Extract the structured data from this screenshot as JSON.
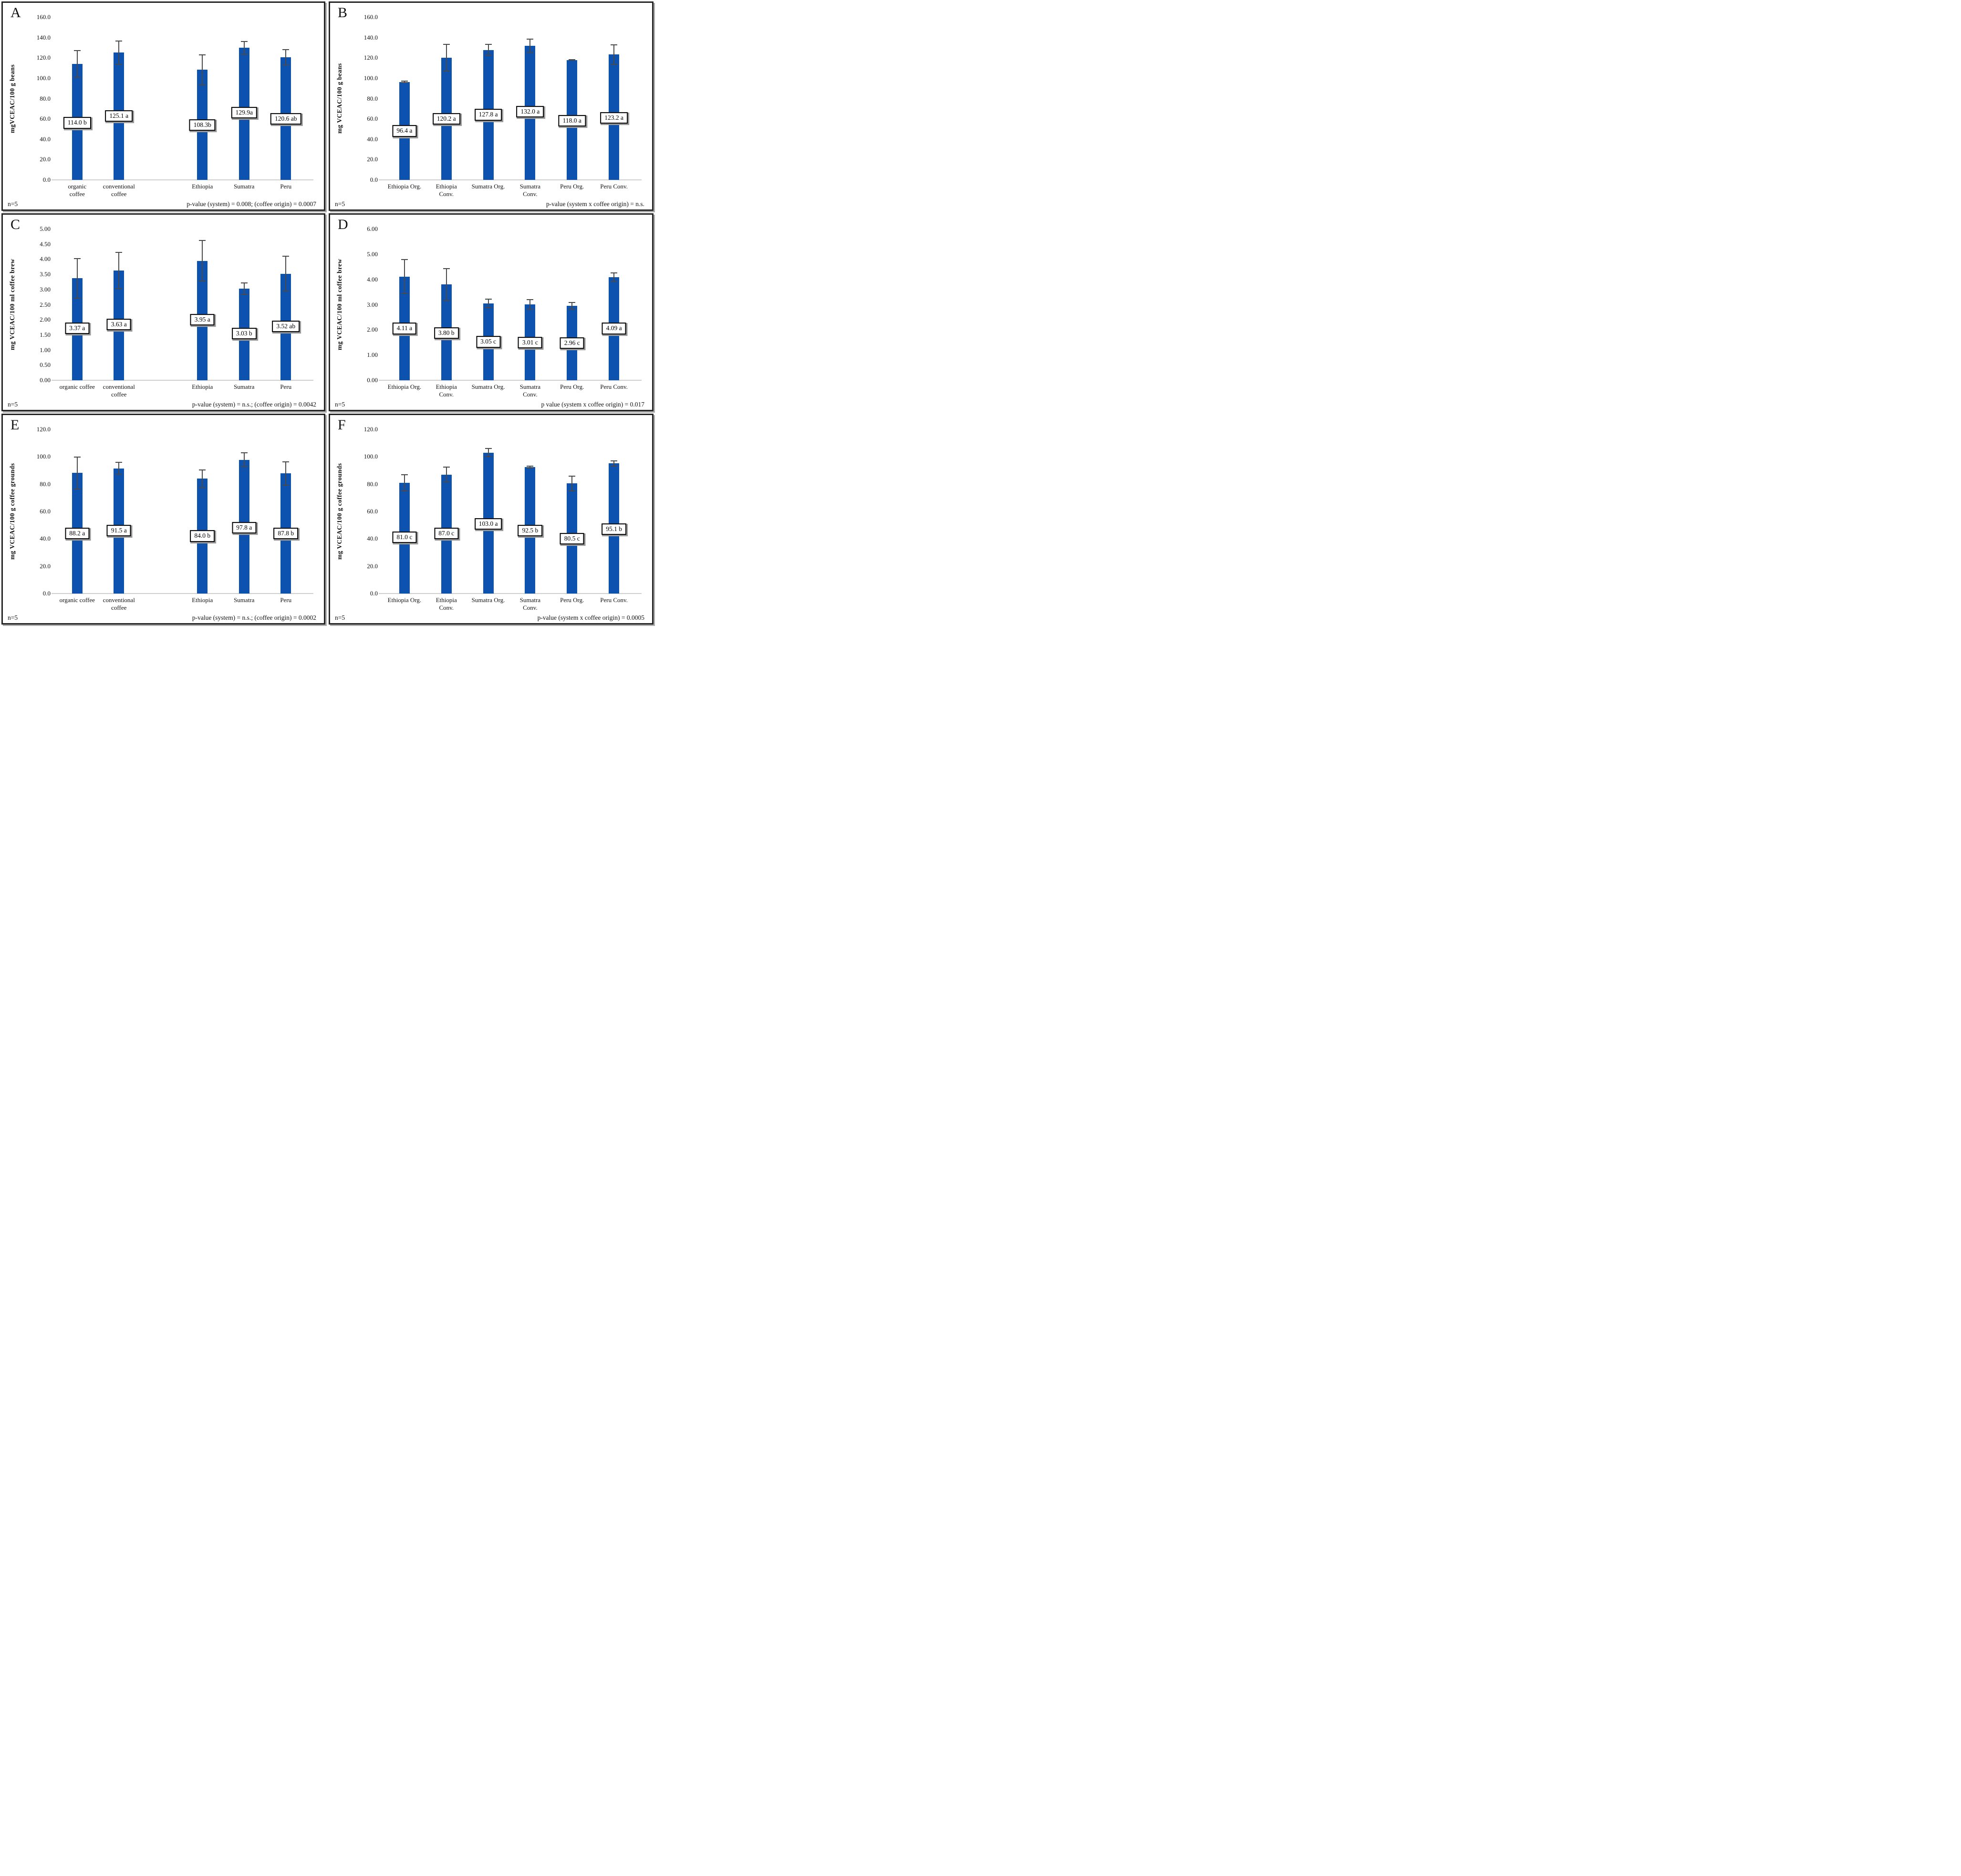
{
  "style": {
    "bar_color": "#0d52af",
    "error_bar_color": "#4a4a4a",
    "baseline_color": "#cfcfcf",
    "panel_border_color": "#262626",
    "label_box_border_color": "#000000",
    "label_box_shadow_color": "#999999"
  },
  "chart_data": [
    {
      "panel": "A",
      "letter": "A",
      "type": "bar",
      "ylabel": "mgVCEAC/100 g beans",
      "ylim": [
        0,
        160
      ],
      "ytick_labels": [
        "0.0",
        "20.0",
        "40.0",
        "60.0",
        "80.0",
        "100.0",
        "120.0",
        "140.0",
        "160.0"
      ],
      "categories": [
        "organic\ncoffee",
        "conventional\ncoffee",
        "Ethiopia",
        "Sumatra",
        "Peru"
      ],
      "values": [
        114.0,
        125.1,
        108.3,
        129.9,
        120.6
      ],
      "errors": [
        13.5,
        11.8,
        15.3,
        6.8,
        7.8
      ],
      "bar_labels": [
        "114.0 b",
        "125.1 a",
        "108.3b",
        "129.9a",
        "120.6 ab"
      ],
      "label_y": [
        56,
        63,
        54,
        66,
        60
      ],
      "slots": [
        0,
        1,
        3,
        4,
        5
      ],
      "n_label": "n=5",
      "p_label": "p-value (system) = 0.008; (coffee origin) = 0.0007",
      "legend": "none",
      "grid": "off"
    },
    {
      "panel": "B",
      "letter": "B",
      "type": "bar",
      "ylabel": "mg VCEAC/100 g beans",
      "ylim": [
        0,
        160
      ],
      "ytick_labels": [
        "0.0",
        "20.0",
        "40.0",
        "60.0",
        "80.0",
        "100.0",
        "120.0",
        "140.0",
        "160.0"
      ],
      "categories": [
        "Ethiopia Org.",
        "Ethiopia\nConv.",
        "Sumatra Org.",
        "Sumatra\nConv.",
        "Peru Org.",
        "Peru Conv."
      ],
      "values": [
        96.4,
        120.2,
        127.8,
        132.0,
        118.0,
        123.2
      ],
      "errors": [
        1.2,
        13.5,
        5.8,
        7.0,
        0.8,
        10.3
      ],
      "bar_labels": [
        "96.4 a",
        "120.2 a",
        "127.8 a",
        "132.0 a",
        "118.0 a",
        "123.2 a"
      ],
      "label_y": [
        48,
        60,
        64,
        67,
        58,
        61
      ],
      "slots": [
        0,
        1,
        2,
        3,
        4,
        5
      ],
      "n_label": "n=5",
      "p_label": "p-value (system x coffee origin) = n.s.",
      "legend": "none",
      "grid": "off"
    },
    {
      "panel": "C",
      "letter": "C",
      "type": "bar",
      "ylabel": "mg VCEAC/100 ml coffee brew",
      "ylim": [
        0,
        5
      ],
      "ytick_labels": [
        "0.00",
        "0.50",
        "1.00",
        "1.50",
        "2.00",
        "2.50",
        "3.00",
        "3.50",
        "4.00",
        "4.50",
        "5.00"
      ],
      "categories": [
        "organic coffee",
        "conventional\ncoffee",
        "Ethiopia",
        "Sumatra",
        "Peru"
      ],
      "values": [
        3.37,
        3.63,
        3.95,
        3.03,
        3.52
      ],
      "errors": [
        0.67,
        0.61,
        0.68,
        0.21,
        0.59
      ],
      "bar_labels": [
        "3.37 a",
        "3.63 a",
        "3.95 a",
        "3.03 b",
        "3.52 ab"
      ],
      "label_y": [
        1.72,
        1.85,
        2.0,
        1.55,
        1.78
      ],
      "slots": [
        0,
        1,
        3,
        4,
        5
      ],
      "n_label": "n=5",
      "p_label": "p-value (system) = n.s.; (coffee origin) = 0.0042",
      "legend": "none",
      "grid": "off"
    },
    {
      "panel": "D",
      "letter": "D",
      "type": "bar",
      "ylabel": "mg VCEAC/100 ml coffee brew",
      "ylim": [
        0,
        6
      ],
      "ytick_labels": [
        "0.00",
        "1.00",
        "2.00",
        "3.00",
        "4.00",
        "5.00",
        "6.00"
      ],
      "categories": [
        "Ethiopia Org.",
        "Ethiopia\nConv.",
        "Sumatra Org.",
        "Sumatra\nConv.",
        "Peru Org.",
        "Peru Conv."
      ],
      "values": [
        4.11,
        3.8,
        3.05,
        3.01,
        2.96,
        4.09
      ],
      "errors": [
        0.69,
        0.65,
        0.19,
        0.2,
        0.15,
        0.19
      ],
      "bar_labels": [
        "4.11 a",
        "3.80 b",
        "3.05 c",
        "3.01 c",
        "2.96 c",
        "4.09 a"
      ],
      "label_y": [
        2.05,
        1.87,
        1.52,
        1.5,
        1.47,
        2.05
      ],
      "slots": [
        0,
        1,
        2,
        3,
        4,
        5
      ],
      "n_label": "n=5",
      "p_label": "p value (system x coffee origin) = 0.017",
      "legend": "none",
      "grid": "off"
    },
    {
      "panel": "E",
      "letter": "E",
      "type": "bar",
      "ylabel": "mg VCEAC/100 g coffee grounds",
      "ylim": [
        0,
        120
      ],
      "ytick_labels": [
        "0.0",
        "20.0",
        "40.0",
        "60.0",
        "80.0",
        "100.0",
        "120.0"
      ],
      "categories": [
        "organic coffee",
        "conventional\ncoffee",
        "Ethiopia",
        "Sumatra",
        "Peru"
      ],
      "values": [
        88.2,
        91.5,
        84.0,
        97.8,
        87.8
      ],
      "errors": [
        12.0,
        4.8,
        6.8,
        5.5,
        8.8
      ],
      "bar_labels": [
        "88.2 a",
        "91.5 a",
        "84.0 b",
        "97.8 a",
        "87.8 b"
      ],
      "label_y": [
        44,
        46,
        42,
        48,
        44
      ],
      "slots": [
        0,
        1,
        3,
        4,
        5
      ],
      "n_label": "n=5",
      "p_label": "p-value (system) = n.s.; (coffee origin) = 0.0002",
      "legend": "none",
      "grid": "off"
    },
    {
      "panel": "F",
      "letter": "F",
      "type": "bar",
      "ylabel": "mg VCEAC/100 g coffee grounds",
      "ylim": [
        0,
        120
      ],
      "ytick_labels": [
        "0.0",
        "20.0",
        "40.0",
        "60.0",
        "80.0",
        "100.0",
        "120.0"
      ],
      "categories": [
        "Ethiopia Org.",
        "Ethiopia\nConv.",
        "Sumatra Org.",
        "Sumatra\nConv.",
        "Peru Org.",
        "Peru Conv."
      ],
      "values": [
        81.0,
        87.0,
        103.0,
        92.5,
        80.5,
        95.1
      ],
      "errors": [
        6.2,
        5.7,
        3.4,
        1.0,
        5.8,
        2.4
      ],
      "bar_labels": [
        "81.0 c",
        "87.0 c",
        "103.0 a",
        "92.5 b",
        "80.5 c",
        "95.1 b"
      ],
      "label_y": [
        41,
        44,
        51,
        46,
        40,
        47
      ],
      "slots": [
        0,
        1,
        2,
        3,
        4,
        5
      ],
      "n_label": "n=5",
      "p_label": "p-value (system x coffee origin) = 0.0005",
      "legend": "none",
      "grid": "off"
    }
  ]
}
